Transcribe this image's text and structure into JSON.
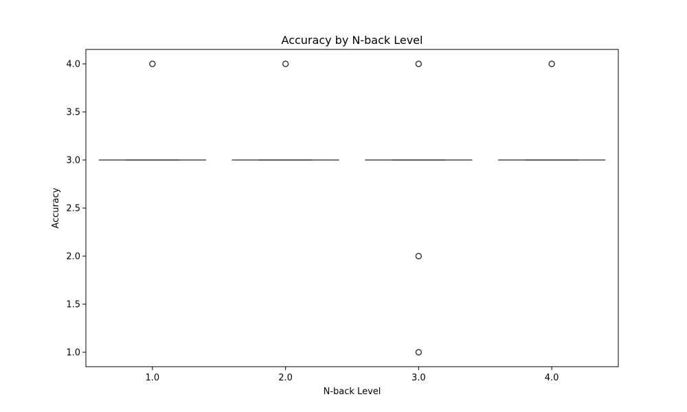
{
  "chart_data": {
    "type": "box",
    "title": "Accuracy by N-back Level",
    "xlabel": "N-back Level",
    "ylabel": "Accuracy",
    "categories": [
      "1.0",
      "2.0",
      "3.0",
      "4.0"
    ],
    "ylim": [
      0.85,
      4.15
    ],
    "yticks": [
      "1.0",
      "1.5",
      "2.0",
      "2.5",
      "3.0",
      "3.5",
      "4.0"
    ],
    "grid": false,
    "boxes": [
      {
        "category": "1.0",
        "q1": 3.0,
        "median": 3.0,
        "q3": 3.0,
        "whisker_low": 3.0,
        "whisker_high": 3.0,
        "outliers": [
          4.0
        ]
      },
      {
        "category": "2.0",
        "q1": 3.0,
        "median": 3.0,
        "q3": 3.0,
        "whisker_low": 3.0,
        "whisker_high": 3.0,
        "outliers": [
          4.0
        ]
      },
      {
        "category": "3.0",
        "q1": 3.0,
        "median": 3.0,
        "q3": 3.0,
        "whisker_low": 3.0,
        "whisker_high": 3.0,
        "outliers": [
          4.0,
          2.0,
          1.0
        ]
      },
      {
        "category": "4.0",
        "q1": 3.0,
        "median": 3.0,
        "q3": 3.0,
        "whisker_low": 3.0,
        "whisker_high": 3.0,
        "outliers": [
          4.0
        ]
      }
    ],
    "colors": {
      "box": "#3d3d3d",
      "axis": "#000000"
    }
  }
}
